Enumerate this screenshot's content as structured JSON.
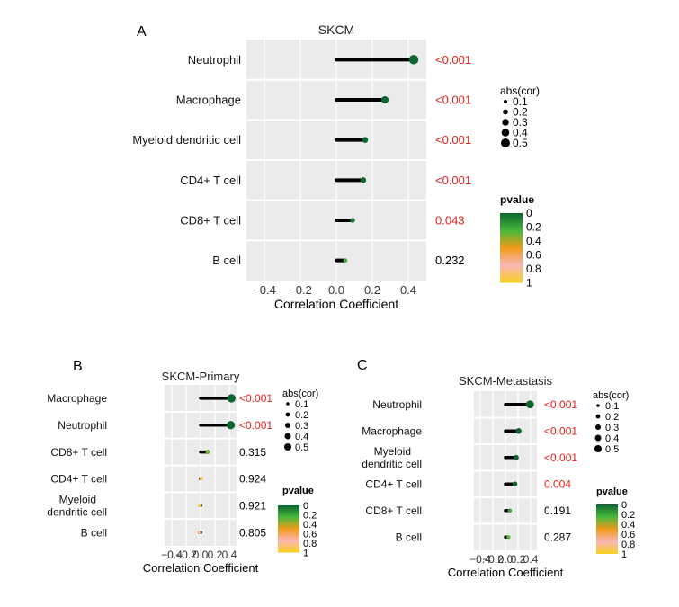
{
  "chart_data": [
    {
      "panel_label": "A",
      "type": "lollipop",
      "title": "SKCM",
      "xlabel": "Correlation Coefficient",
      "xlim": [
        -0.5,
        0.5
      ],
      "xticks": [
        -0.4,
        -0.2,
        0,
        0.2,
        0.4
      ],
      "xtick_labels": [
        "−0.4",
        "−0.2",
        "0.0",
        "0.2",
        "0.4"
      ],
      "categories": [
        "Neutrophil",
        "Macrophage",
        "Myeloid dendritic cell",
        "CD4+ T cell",
        "CD8+ T cell",
        "B cell"
      ],
      "category_lines": [
        [
          "Neutrophil"
        ],
        [
          "Macrophage"
        ],
        [
          "Myeloid dendritic cell"
        ],
        [
          "CD4+ T cell"
        ],
        [
          "CD8+ T cell"
        ],
        [
          "B cell"
        ]
      ],
      "values": [
        0.43,
        0.27,
        0.16,
        0.15,
        0.09,
        0.05
      ],
      "pvalue_labels": [
        "<0.001",
        "<0.001",
        "<0.001",
        "<0.001",
        "0.043",
        "0.232"
      ],
      "pvalues": [
        0.0,
        0.0,
        0.0,
        0.0,
        0.043,
        0.232
      ]
    },
    {
      "panel_label": "B",
      "type": "lollipop",
      "title": "SKCM-Primary",
      "xlabel": "Correlation Coefficient",
      "xlim": [
        -0.5,
        0.5
      ],
      "xticks": [
        -0.4,
        -0.2,
        0,
        0.2,
        0.4
      ],
      "xtick_labels": [
        "−0.4",
        "−0.2",
        "0.0",
        "0.2",
        "0.4"
      ],
      "categories": [
        "Macrophage",
        "Neutrophil",
        "CD8+ T cell",
        "CD4+ T cell",
        "Myeloid dendritic cell",
        "B cell"
      ],
      "category_lines": [
        [
          "Macrophage"
        ],
        [
          "Neutrophil"
        ],
        [
          "CD8+ T cell"
        ],
        [
          "CD4+ T cell"
        ],
        [
          "Myeloid",
          "dendritic cell"
        ],
        [
          "B cell"
        ]
      ],
      "values": [
        0.43,
        0.42,
        0.1,
        0.01,
        -0.01,
        -0.02
      ],
      "pvalue_labels": [
        "<0.001",
        "<0.001",
        "0.315",
        "0.924",
        "0.921",
        "0.805"
      ],
      "pvalues": [
        0.0,
        0.0,
        0.315,
        0.924,
        0.921,
        0.805
      ]
    },
    {
      "panel_label": "C",
      "type": "lollipop",
      "title": "SKCM-Metastasis",
      "xlabel": "Correlation Coefficient",
      "xlim": [
        -0.5,
        0.5
      ],
      "xticks": [
        -0.4,
        -0.2,
        0,
        0.2,
        0.4
      ],
      "xtick_labels": [
        "−0.4",
        "−0.2",
        "0.0",
        "0.2",
        "0.4"
      ],
      "categories": [
        "Neutrophil",
        "Macrophage",
        "Myeloid dendritic cell",
        "CD4+ T cell",
        "CD8+ T cell",
        "B cell"
      ],
      "category_lines": [
        [
          "Neutrophil"
        ],
        [
          "Macrophage"
        ],
        [
          "Myeloid",
          "dendritic cell"
        ],
        [
          "CD4+ T cell"
        ],
        [
          "CD8+ T cell"
        ],
        [
          "B cell"
        ]
      ],
      "values": [
        0.39,
        0.21,
        0.17,
        0.15,
        0.07,
        0.05
      ],
      "pvalue_labels": [
        "<0.001",
        "<0.001",
        "<0.001",
        "0.004",
        "0.191",
        "0.287"
      ],
      "pvalues": [
        0.0,
        0.0,
        0.0,
        0.004,
        0.191,
        0.287
      ]
    }
  ],
  "legend": {
    "size_title": "abs(cor)",
    "size_values": [
      "0.1",
      "0.2",
      "0.3",
      "0.4",
      "0.5"
    ],
    "color_title": "pvalue",
    "color_values": [
      "0",
      "0.2",
      "0.4",
      "0.6",
      "0.8",
      "1"
    ],
    "color_stops": [
      "#0b6630",
      "#47b83a",
      "#f29a1a",
      "#f9b6b6",
      "#f6d21c"
    ]
  },
  "colors": {
    "panel_bg": "#ebebeb",
    "grid": "#ffffff",
    "stem": "#000000",
    "significant_text": "#e4221b",
    "normal_text": "#000000"
  }
}
